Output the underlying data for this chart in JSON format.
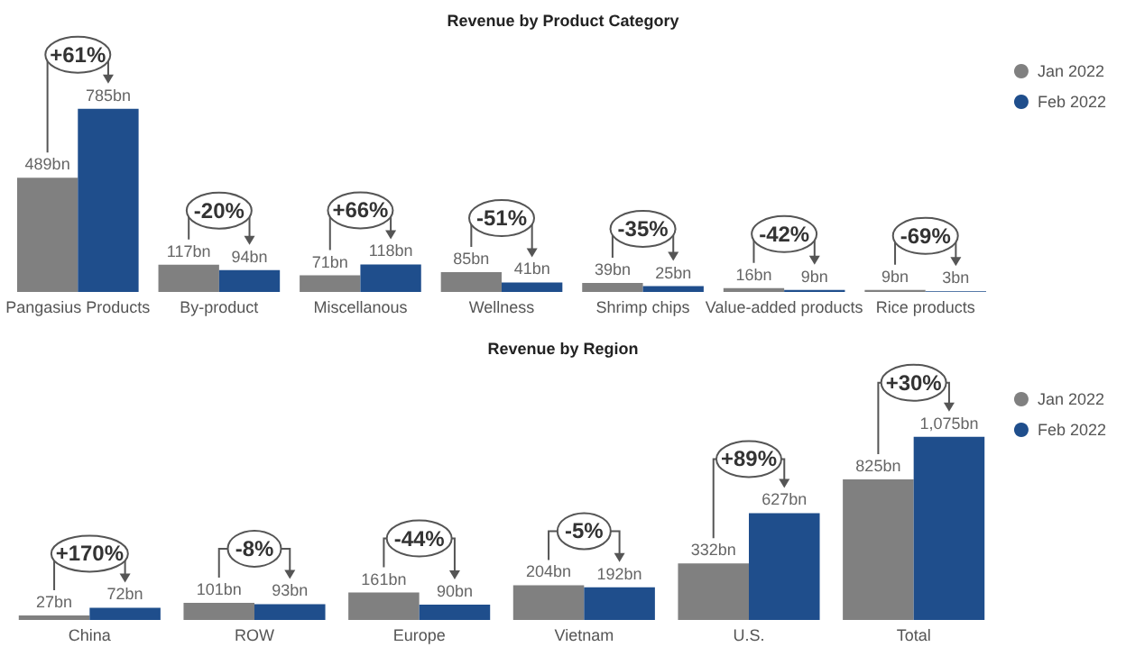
{
  "chart_data": [
    {
      "type": "bar",
      "title": "Revenue by Product Category",
      "categories": [
        "Pangasius Products",
        "By-product",
        "Miscellanous",
        "Wellness",
        "Shrimp chips",
        "Value-added products",
        "Rice products"
      ],
      "series": [
        {
          "name": "Jan 2022",
          "color": "#808080",
          "values": [
            489,
            117,
            71,
            85,
            39,
            16,
            9
          ],
          "value_labels": [
            "489bn",
            "117bn",
            "71bn",
            "85bn",
            "39bn",
            "16bn",
            "9bn"
          ]
        },
        {
          "name": "Feb 2022",
          "color": "#1f4e8c",
          "values": [
            785,
            94,
            118,
            41,
            25,
            9,
            3
          ],
          "value_labels": [
            "785bn",
            "94bn",
            "118bn",
            "41bn",
            "25bn",
            "9bn",
            "3bn"
          ]
        }
      ],
      "annotations": [
        {
          "text": "+61%",
          "x": "Pangasius Products",
          "y": 785
        },
        {
          "text": "-20%",
          "x": "By-product",
          "y": 117
        },
        {
          "text": "+66%",
          "x": "Miscellanous",
          "y": 118
        },
        {
          "text": "-51%",
          "x": "Wellness",
          "y": 85
        },
        {
          "text": "-35%",
          "x": "Shrimp chips",
          "y": 39
        },
        {
          "text": "-42%",
          "x": "Value-added products",
          "y": 16
        },
        {
          "text": "-69%",
          "x": "Rice products",
          "y": 9
        }
      ],
      "legend": "top right",
      "grid": false,
      "tick_labels": "x"
    },
    {
      "type": "bar",
      "title": "Revenue by Region",
      "categories": [
        "China",
        "ROW",
        "Europe",
        "Vietnam",
        "U.S.",
        "Total"
      ],
      "series": [
        {
          "name": "Jan 2022",
          "color": "#808080",
          "values": [
            27,
            101,
            161,
            204,
            332,
            825
          ],
          "value_labels": [
            "27bn",
            "101bn",
            "161bn",
            "204bn",
            "332bn",
            "825bn"
          ]
        },
        {
          "name": "Feb 2022",
          "color": "#1f4e8c",
          "values": [
            72,
            93,
            90,
            192,
            627,
            1075
          ],
          "value_labels": [
            "72bn",
            "93bn",
            "90bn",
            "192bn",
            "627bn",
            "1,075bn"
          ]
        }
      ],
      "annotations": [
        {
          "text": "+170%",
          "x": "China",
          "y": 72
        },
        {
          "text": "-8%",
          "x": "ROW",
          "y": 101
        },
        {
          "text": "-44%",
          "x": "Europe",
          "y": 161
        },
        {
          "text": "-5%",
          "x": "Vietnam",
          "y": 204
        },
        {
          "text": "+89%",
          "x": "U.S.",
          "y": 627
        },
        {
          "text": "+30%",
          "x": "Total",
          "y": 1075
        }
      ],
      "legend": "top right",
      "grid": false,
      "tick_labels": "x"
    }
  ]
}
